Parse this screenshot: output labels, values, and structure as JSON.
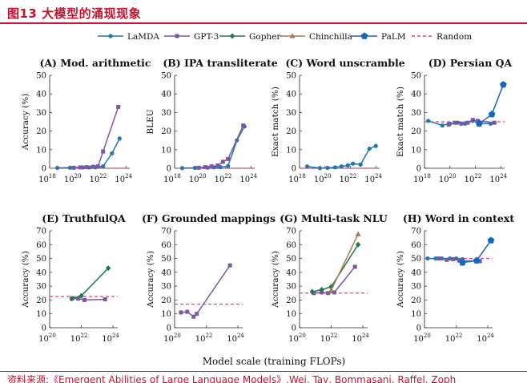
{
  "header": {
    "title": "图13 大模型的涌现现象",
    "source": "资料来源:《Emergent Abilities of Large Language Models》,Wei, Tay, Bommasani, Raffel, Zoph"
  },
  "legend": [
    {
      "name": "LaMDA",
      "color": "#1f77b4",
      "marker": "circle"
    },
    {
      "name": "GPT-3",
      "color": "#7e57a3",
      "marker": "square"
    },
    {
      "name": "Gopher",
      "color": "#1f7a4d",
      "marker": "diamond"
    },
    {
      "name": "Chinchilla",
      "color": "#a67c5c",
      "marker": "triangle"
    },
    {
      "name": "PaLM",
      "color": "#1565c0",
      "marker": "pentagon"
    },
    {
      "name": "Random",
      "color": "#e0457b",
      "marker": "dashed"
    }
  ],
  "x_axis_label": "Model scale (training FLOPs)",
  "chart_data": [
    {
      "type": "line",
      "title": "(A) Mod. arithmetic",
      "ylabel": "Accuracy (%)",
      "xlim": [
        18,
        24.3
      ],
      "ylim": [
        0,
        50
      ],
      "xticks": [
        "10",
        "10",
        "10",
        "10"
      ],
      "xtick_exps": [
        "18",
        "20",
        "22",
        "24"
      ],
      "xtick_values": [
        18,
        20,
        22,
        24
      ],
      "yticks": [
        0,
        10,
        20,
        30,
        40,
        50
      ],
      "random": 0,
      "series": [
        {
          "name": "LaMDA",
          "x": [
            18.6,
            19.6,
            20.6,
            21.1,
            21.6,
            22.2,
            22.9,
            23.5
          ],
          "y": [
            0.2,
            0.3,
            0.4,
            0.4,
            0.5,
            1.0,
            8.0,
            16.0
          ]
        },
        {
          "name": "GPT-3",
          "x": [
            19.9,
            20.4,
            20.9,
            21.4,
            21.8,
            22.2,
            23.4
          ],
          "y": [
            0.3,
            0.5,
            0.6,
            0.8,
            1.0,
            9.0,
            33.0
          ]
        }
      ]
    },
    {
      "type": "line",
      "title": "(B) IPA transliterate",
      "ylabel": "BLEU",
      "xlim": [
        18,
        24.3
      ],
      "ylim": [
        0,
        50
      ],
      "xticks": [
        "10",
        "10",
        "10",
        "10"
      ],
      "xtick_exps": [
        "18",
        "20",
        "22",
        "24"
      ],
      "xtick_values": [
        18,
        20,
        22,
        24
      ],
      "yticks": [
        0,
        10,
        20,
        30,
        40,
        50
      ],
      "random": 0,
      "series": [
        {
          "name": "LaMDA",
          "x": [
            18.6,
            19.6,
            20.6,
            21.1,
            21.6,
            22.2,
            22.9,
            23.5
          ],
          "y": [
            0.1,
            0.2,
            0.3,
            0.5,
            0.6,
            1.2,
            15.0,
            22.5
          ]
        },
        {
          "name": "GPT-3",
          "x": [
            19.9,
            20.4,
            20.9,
            21.4,
            21.8,
            22.2,
            23.4
          ],
          "y": [
            0.3,
            0.6,
            1.0,
            1.5,
            3.5,
            5.0,
            23.0
          ]
        }
      ]
    },
    {
      "type": "line",
      "title": "(C) Word unscramble",
      "ylabel": "Exact match (%)",
      "xlim": [
        18,
        24.3
      ],
      "ylim": [
        0,
        50
      ],
      "xticks": [
        "10",
        "10",
        "10",
        "10"
      ],
      "xtick_exps": [
        "18",
        "20",
        "22",
        "24"
      ],
      "xtick_values": [
        18,
        20,
        22,
        24
      ],
      "yticks": [
        0,
        10,
        20,
        30,
        40,
        50
      ],
      "random": 0,
      "series": [
        {
          "name": "LaMDA",
          "x": [
            18.6,
            19.6,
            20.2,
            20.8,
            21.3,
            21.8,
            22.2,
            22.8,
            23.5,
            24.0
          ],
          "y": [
            1.0,
            0.1,
            0.2,
            0.5,
            1.0,
            1.5,
            2.5,
            2.0,
            10.5,
            12.0
          ]
        }
      ]
    },
    {
      "type": "line",
      "title": "(D) Persian QA",
      "ylabel": "Exact match (%)",
      "xlim": [
        18,
        24.3
      ],
      "ylim": [
        0,
        50
      ],
      "xticks": [
        "10",
        "10",
        "10",
        "10"
      ],
      "xtick_exps": [
        "18",
        "20",
        "22",
        "24"
      ],
      "xtick_values": [
        18,
        20,
        22,
        24
      ],
      "yticks": [
        0,
        10,
        20,
        30,
        40,
        50
      ],
      "random": 25,
      "series": [
        {
          "name": "LaMDA",
          "x": [
            18.3,
            19.4,
            20.0,
            20.6,
            21.2,
            21.8,
            22.4,
            23.2
          ],
          "y": [
            25.5,
            23.0,
            24.0,
            24.5,
            24.0,
            25.5,
            24.0,
            24.0
          ]
        },
        {
          "name": "GPT-3",
          "x": [
            19.9,
            20.4,
            20.9,
            21.4,
            21.8,
            22.2,
            23.5
          ],
          "y": [
            23.5,
            24.5,
            24.0,
            24.5,
            26.0,
            25.5,
            24.5
          ]
        },
        {
          "name": "PaLM",
          "x": [
            22.3,
            23.3,
            24.2
          ],
          "y": [
            24.0,
            29.0,
            45.0
          ]
        }
      ]
    },
    {
      "type": "line",
      "title": "(E) TruthfulQA",
      "ylabel": "Accuracy (%)",
      "xlim": [
        20,
        24.3
      ],
      "ylim": [
        0,
        70
      ],
      "xticks": [
        "10",
        "10",
        "10"
      ],
      "xtick_exps": [
        "20",
        "22",
        "24"
      ],
      "xtick_values": [
        20,
        22,
        24
      ],
      "yticks": [
        0,
        10,
        20,
        30,
        40,
        50,
        60,
        70
      ],
      "random": 22.5,
      "series": [
        {
          "name": "GPT-3",
          "x": [
            21.4,
            21.8,
            22.2,
            23.5
          ],
          "y": [
            21.0,
            21.0,
            20.0,
            20.5
          ]
        },
        {
          "name": "Gopher",
          "x": [
            21.4,
            22.0,
            23.7
          ],
          "y": [
            21.0,
            23.0,
            43.0
          ]
        }
      ]
    },
    {
      "type": "line",
      "title": "(F) Grounded mappings",
      "ylabel": "Accuracy (%)",
      "xlim": [
        20,
        24.3
      ],
      "ylim": [
        0,
        70
      ],
      "xticks": [
        "10",
        "10",
        "10"
      ],
      "xtick_exps": [
        "20",
        "22",
        "24"
      ],
      "xtick_values": [
        20,
        22,
        24
      ],
      "yticks": [
        0,
        10,
        20,
        30,
        40,
        50,
        60,
        70
      ],
      "random": 17,
      "series": [
        {
          "name": "GPT-3",
          "x": [
            20.4,
            20.8,
            21.2,
            21.4,
            23.5
          ],
          "y": [
            11.0,
            11.5,
            8.0,
            10.0,
            45.0
          ]
        }
      ]
    },
    {
      "type": "line",
      "title": "(G) Multi-task NLU",
      "ylabel": "Accuracy (%)",
      "xlim": [
        20,
        24.3
      ],
      "ylim": [
        0,
        70
      ],
      "xticks": [
        "10",
        "10",
        "10"
      ],
      "xtick_exps": [
        "20",
        "22",
        "24"
      ],
      "xtick_values": [
        20,
        22,
        24
      ],
      "yticks": [
        0,
        10,
        20,
        30,
        40,
        50,
        60,
        70
      ],
      "random": 25,
      "series": [
        {
          "name": "GPT-3",
          "x": [
            20.9,
            21.4,
            21.8,
            22.2,
            23.5
          ],
          "y": [
            25.0,
            25.5,
            25.0,
            25.5,
            44.0
          ]
        },
        {
          "name": "Gopher",
          "x": [
            20.8,
            21.4,
            22.0,
            23.7
          ],
          "y": [
            26.0,
            27.5,
            29.5,
            60.0
          ]
        },
        {
          "name": "Chinchilla",
          "x": [
            22.0,
            23.7
          ],
          "y": [
            27.0,
            67.5
          ]
        }
      ]
    },
    {
      "type": "line",
      "title": "(H) Word in context",
      "ylabel": "Accuracy (%)",
      "xlim": [
        20,
        24.3
      ],
      "ylim": [
        0,
        70
      ],
      "xticks": [
        "10",
        "10",
        "10"
      ],
      "xtick_exps": [
        "20",
        "22",
        "24"
      ],
      "xtick_values": [
        20,
        22,
        24
      ],
      "yticks": [
        0,
        10,
        20,
        30,
        40,
        50,
        60,
        70
      ],
      "random": 50,
      "series": [
        {
          "name": "LaMDA",
          "x": [
            20.2,
            20.7,
            21.1,
            21.6,
            22.0,
            22.4
          ],
          "y": [
            50.0,
            50.0,
            50.0,
            50.0,
            50.0,
            49.5
          ]
        },
        {
          "name": "GPT-3",
          "x": [
            20.9,
            21.4,
            21.8,
            22.2,
            23.5
          ],
          "y": [
            50.0,
            49.0,
            49.5,
            48.5,
            48.0
          ]
        },
        {
          "name": "PaLM",
          "x": [
            22.4,
            23.3,
            24.2
          ],
          "y": [
            47.0,
            48.5,
            63.0
          ]
        }
      ]
    }
  ]
}
